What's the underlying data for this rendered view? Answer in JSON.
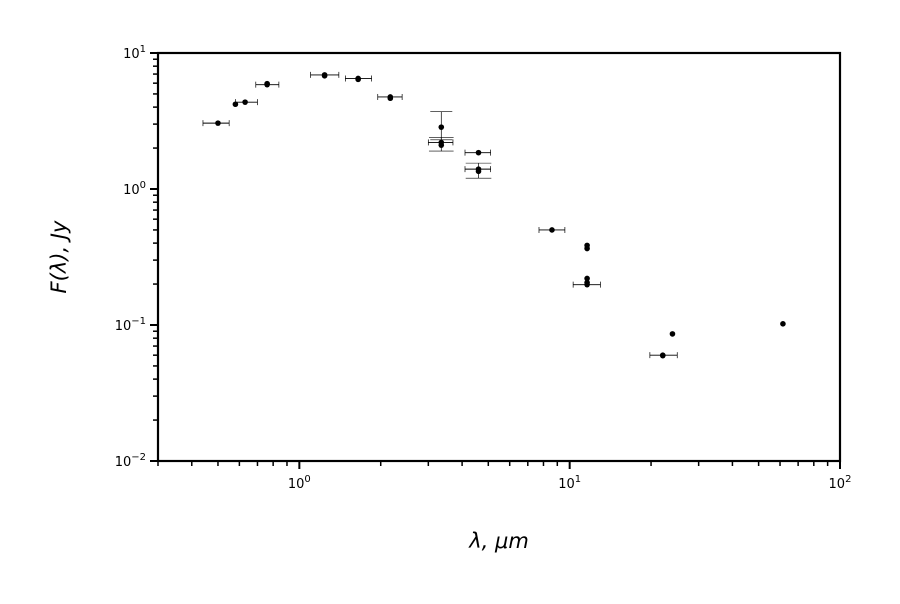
{
  "chart_data": {
    "type": "scatter",
    "xlabel": "λ, μm",
    "ylabel": "F(λ), Jy",
    "x_scale": "log",
    "y_scale": "log",
    "xlim": [
      0.3,
      100
    ],
    "ylim": [
      0.01,
      10
    ],
    "grid": false,
    "legend": "none",
    "x_ticks": [
      {
        "value": 1,
        "base": "10",
        "exp": "0"
      },
      {
        "value": 10,
        "base": "10",
        "exp": "1"
      },
      {
        "value": 100,
        "base": "10",
        "exp": "2"
      }
    ],
    "y_ticks": [
      {
        "value": 10,
        "base": "10",
        "exp": "1"
      },
      {
        "value": 1,
        "base": "10",
        "exp": "0"
      },
      {
        "value": 0.1,
        "base": "10",
        "exp": "−1"
      },
      {
        "value": 0.01,
        "base": "10",
        "exp": "−2"
      }
    ],
    "points": [
      {
        "x": 0.5,
        "y": 3.05,
        "xerr": [
          0.44,
          0.55
        ]
      },
      {
        "x": 0.58,
        "y": 4.2
      },
      {
        "x": 0.63,
        "y": 4.35,
        "xerr": [
          0.58,
          0.7
        ]
      },
      {
        "x": 0.76,
        "y": 5.85,
        "xerr": [
          0.69,
          0.84
        ]
      },
      {
        "x": 0.76,
        "y": 5.95
      },
      {
        "x": 1.24,
        "y": 6.9,
        "xerr": [
          1.1,
          1.4
        ]
      },
      {
        "x": 1.24,
        "y": 6.8
      },
      {
        "x": 1.65,
        "y": 6.5,
        "xerr": [
          1.48,
          1.85
        ]
      },
      {
        "x": 1.65,
        "y": 6.4
      },
      {
        "x": 2.17,
        "y": 4.75,
        "xerr": [
          1.95,
          2.4
        ]
      },
      {
        "x": 2.17,
        "y": 4.65
      },
      {
        "x": 3.35,
        "y": 2.85,
        "yerr": [
          2.3,
          3.7
        ]
      },
      {
        "x": 3.35,
        "y": 2.2,
        "xerr": [
          3.0,
          3.7
        ],
        "yerr": [
          1.9,
          2.4
        ]
      },
      {
        "x": 3.35,
        "y": 2.1
      },
      {
        "x": 4.6,
        "y": 1.85,
        "xerr": [
          4.1,
          5.1
        ]
      },
      {
        "x": 4.6,
        "y": 1.4,
        "xerr": [
          4.1,
          5.1
        ],
        "yerr": [
          1.2,
          1.55
        ]
      },
      {
        "x": 4.6,
        "y": 1.35
      },
      {
        "x": 8.6,
        "y": 0.5,
        "xerr": [
          7.7,
          9.6
        ]
      },
      {
        "x": 11.6,
        "y": 0.385
      },
      {
        "x": 11.6,
        "y": 0.365
      },
      {
        "x": 11.6,
        "y": 0.22
      },
      {
        "x": 11.6,
        "y": 0.205
      },
      {
        "x": 11.6,
        "y": 0.198,
        "xerr": [
          10.3,
          13.0
        ]
      },
      {
        "x": 22.1,
        "y": 0.06,
        "xerr": [
          19.8,
          25.0
        ]
      },
      {
        "x": 22.1,
        "y": 0.0595
      },
      {
        "x": 24.0,
        "y": 0.086
      },
      {
        "x": 61.5,
        "y": 0.102
      }
    ]
  }
}
